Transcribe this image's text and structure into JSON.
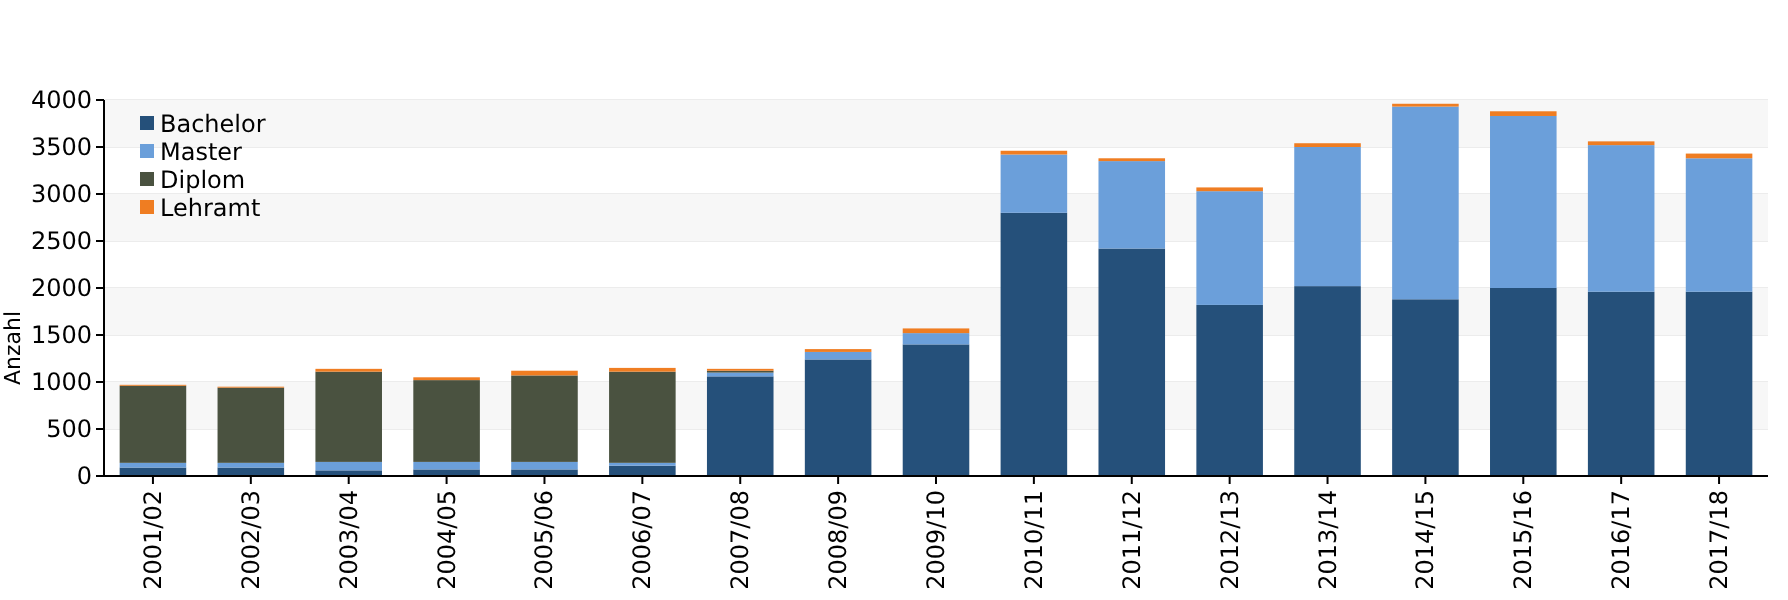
{
  "chart_data": {
    "type": "bar",
    "stacked": true,
    "ylabel": "Anzahl",
    "categories": [
      "2001/02",
      "2002/03",
      "2003/04",
      "2004/05",
      "2005/06",
      "2006/07",
      "2007/08",
      "2008/09",
      "2009/10",
      "2010/11",
      "2011/12",
      "2012/13",
      "2013/14",
      "2014/15",
      "2015/16",
      "2016/17",
      "2017/18"
    ],
    "series": [
      {
        "name": "Bachelor",
        "color": "#25507a",
        "values": [
          90,
          90,
          60,
          70,
          70,
          110,
          1060,
          1240,
          1400,
          2800,
          2420,
          1820,
          2020,
          1880,
          2000,
          1960,
          1960
        ]
      },
      {
        "name": "Master",
        "color": "#6b9fda",
        "values": [
          50,
          50,
          90,
          80,
          80,
          30,
          40,
          80,
          120,
          620,
          930,
          1210,
          1480,
          2050,
          1830,
          1560,
          1420
        ]
      },
      {
        "name": "Diplom",
        "color": "#4a5240",
        "values": [
          820,
          800,
          960,
          870,
          920,
          970,
          20,
          0,
          0,
          0,
          0,
          0,
          0,
          0,
          0,
          0,
          0
        ]
      },
      {
        "name": "Lehramt",
        "color": "#ef7d22",
        "values": [
          10,
          10,
          30,
          30,
          50,
          40,
          20,
          30,
          50,
          40,
          30,
          40,
          40,
          30,
          50,
          40,
          50
        ]
      }
    ],
    "ylim": [
      0,
      4000
    ],
    "yticks": [
      0,
      500,
      1000,
      1500,
      2000,
      2500,
      3000,
      3500,
      4000
    ],
    "grid": "y",
    "legend": "top left"
  }
}
